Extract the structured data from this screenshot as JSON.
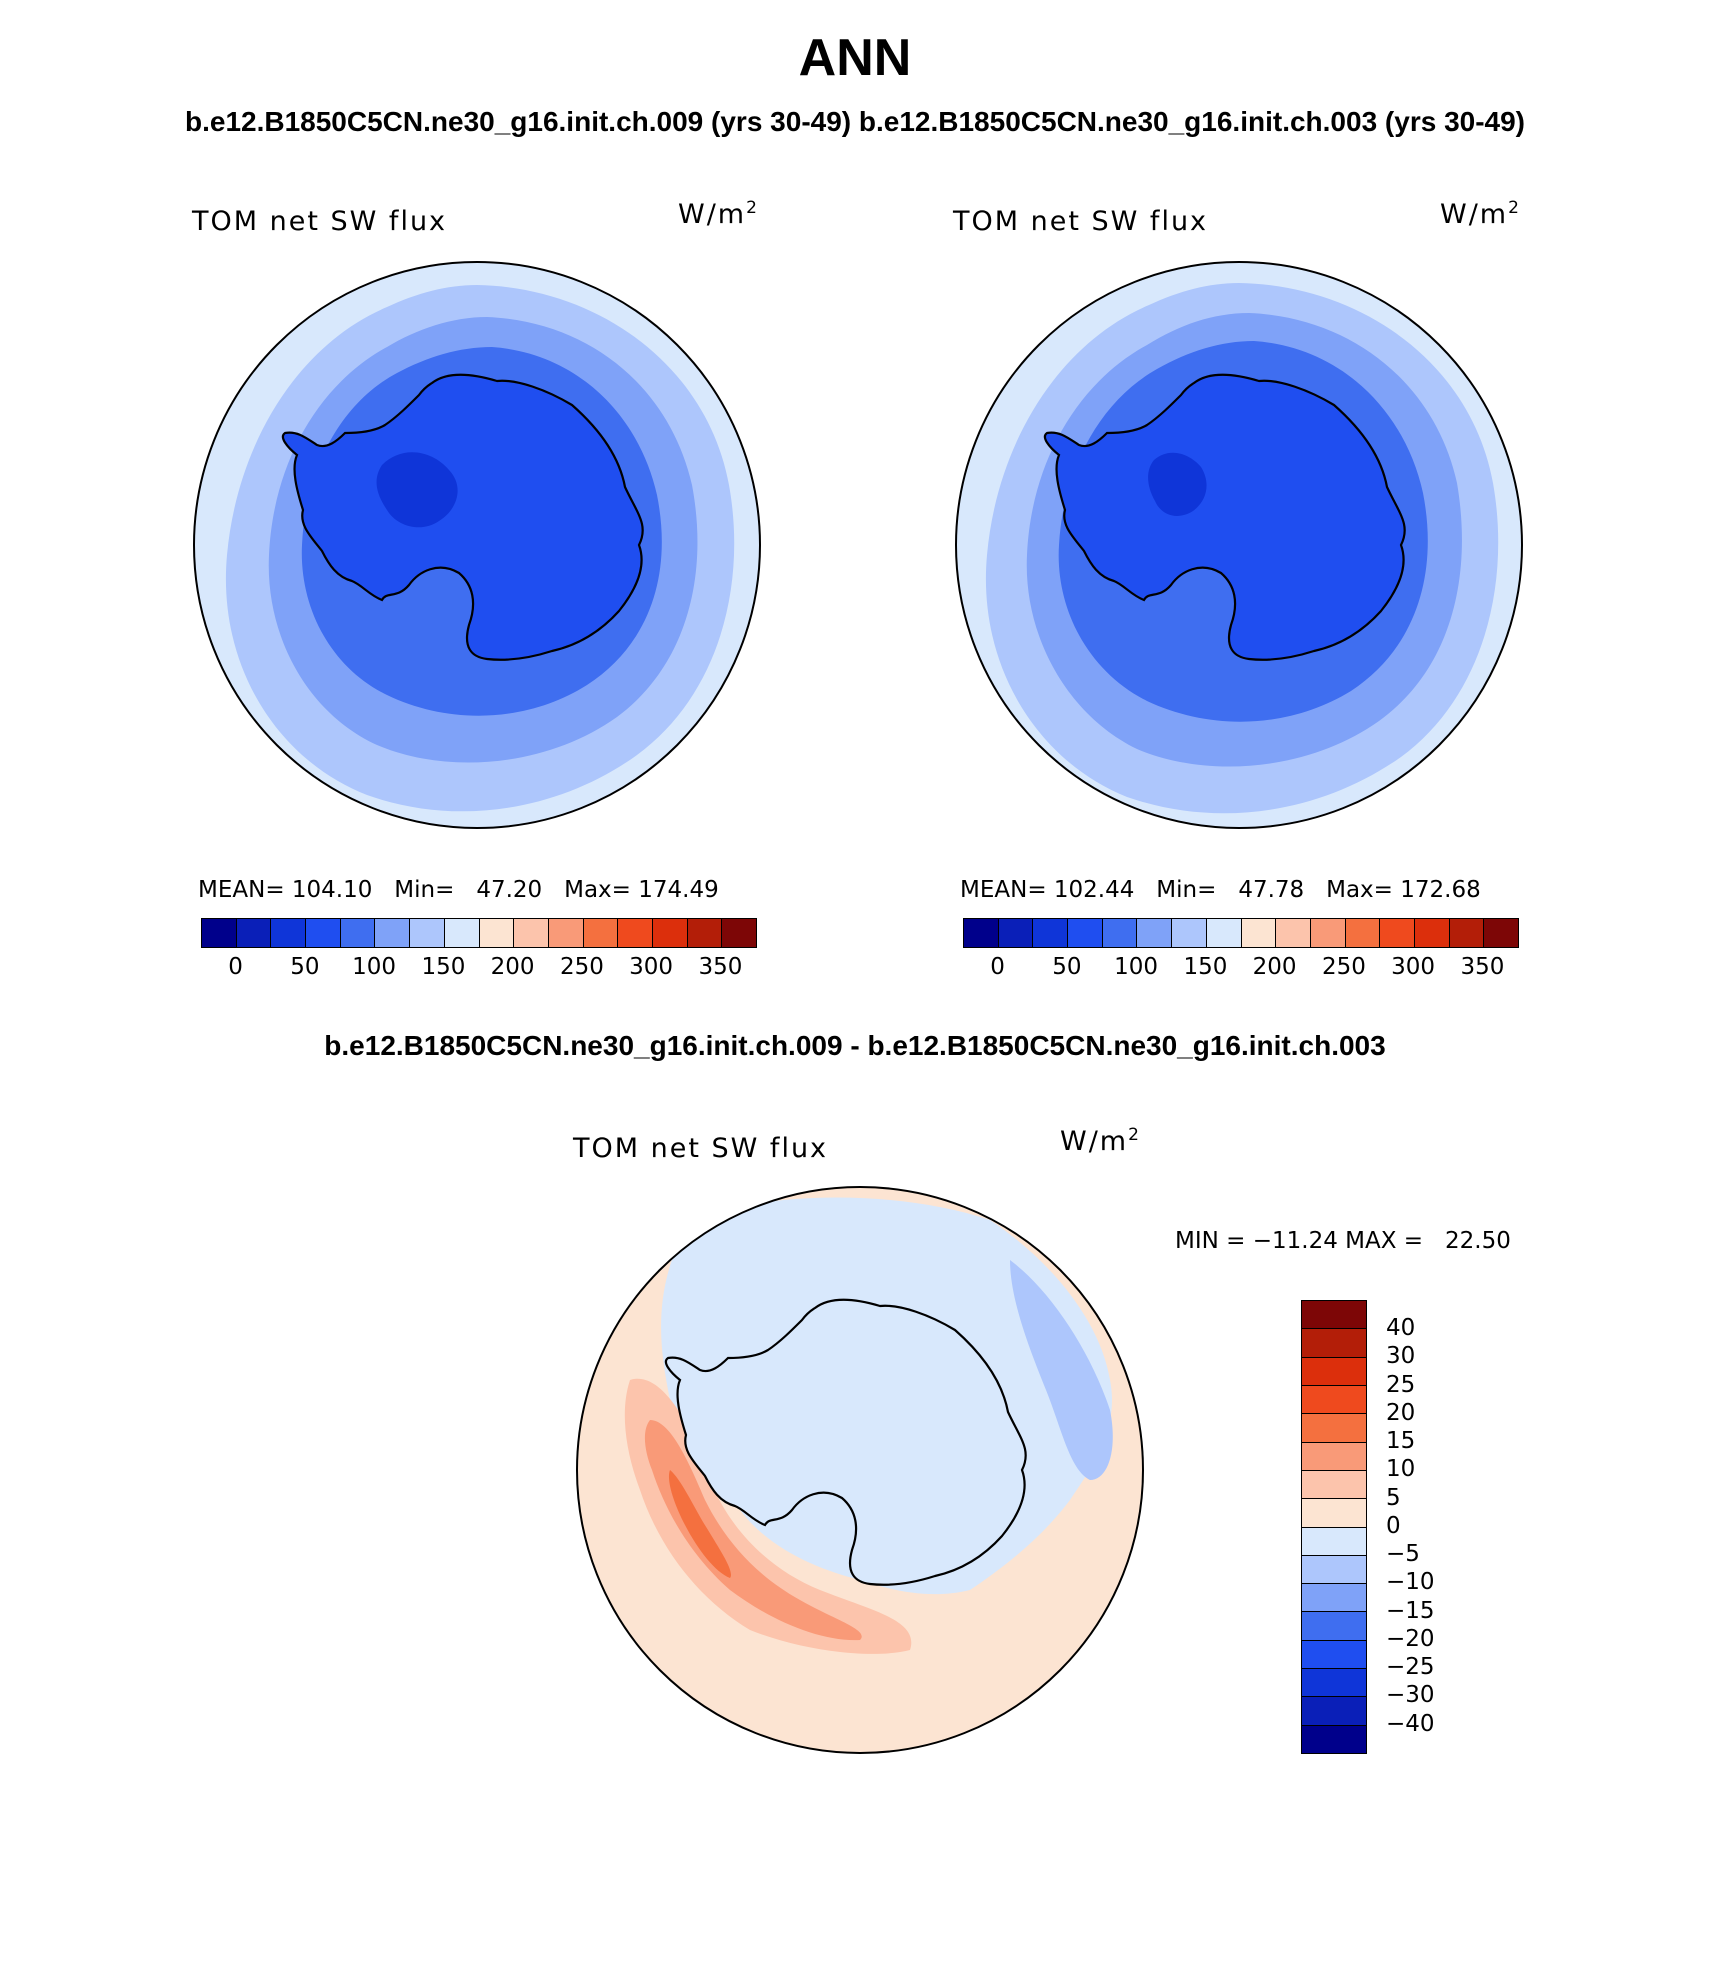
{
  "figure": {
    "title": "ANN",
    "run_titles": "b.e12.B1850C5CN.ne30_g16.init.ch.009 (yrs 30-49) b.e12.B1850C5CN.ne30_g16.init.ch.003 (yrs 30-49)",
    "diff_title": "b.e12.B1850C5CN.ne30_g16.init.ch.009 - b.e12.B1850C5CN.ne30_g16.init.ch.003"
  },
  "panels": [
    {
      "variable": "TOM net SW flux",
      "units": "W/m",
      "units_exp": "2",
      "stats": "MEAN= 104.10   Min=   47.20   Max= 174.49"
    },
    {
      "variable": "TOM net SW flux",
      "units": "W/m",
      "units_exp": "2",
      "stats": "MEAN= 102.44   Min=   47.78   Max= 172.68"
    }
  ],
  "difference_panel": {
    "variable": "TOM net SW flux",
    "units": "W/m",
    "units_exp": "2",
    "stats": "MIN = −11.24 MAX =   22.50"
  },
  "colors": {
    "abs_colors": [
      "#00008b",
      "#0a1fb8",
      "#0f35d8",
      "#1f4ef0",
      "#3f6ef0",
      "#7fa2f8",
      "#adc6fc",
      "#d8e8fc",
      "#fce4d2",
      "#fcc4ac",
      "#f99a78",
      "#f4703f",
      "#ef4a1e",
      "#dc2f0c",
      "#b31e08",
      "#7d0606"
    ],
    "diff_colors": [
      "#7d0606",
      "#b31e08",
      "#dc2f0c",
      "#ef4a1e",
      "#f4703f",
      "#f99a78",
      "#fcc4ac",
      "#fce4d2",
      "#d8e8fc",
      "#adc6fc",
      "#7fa2f8",
      "#3f6ef0",
      "#1f4ef0",
      "#0f35d8",
      "#0a1fb8",
      "#00008b"
    ]
  },
  "chart_data": [
    {
      "type": "polar-stereographic-contour-map",
      "title": "TOM net SW flux",
      "units": "W/m^2",
      "region": "South Polar (Antarctica)",
      "run": "b.e12.B1850C5CN.ne30_g16.init.ch.009 (yrs 30-49)",
      "mean": 104.1,
      "min": 47.2,
      "max": 174.49,
      "contour_levels": [
        0,
        25,
        50,
        75,
        100,
        125,
        150,
        175,
        200,
        225,
        250,
        275,
        300,
        325,
        350
      ],
      "colorbar_tick_labels": [
        "0",
        "50",
        "100",
        "150",
        "200",
        "250",
        "300",
        "350"
      ],
      "bands_center_to_edge": [
        75,
        100,
        125,
        150,
        175
      ]
    },
    {
      "type": "polar-stereographic-contour-map",
      "title": "TOM net SW flux",
      "units": "W/m^2",
      "region": "South Polar (Antarctica)",
      "run": "b.e12.B1850C5CN.ne30_g16.init.ch.003 (yrs 30-49)",
      "mean": 102.44,
      "min": 47.78,
      "max": 172.68,
      "contour_levels": [
        0,
        25,
        50,
        75,
        100,
        125,
        150,
        175,
        200,
        225,
        250,
        275,
        300,
        325,
        350
      ],
      "colorbar_tick_labels": [
        "0",
        "50",
        "100",
        "150",
        "200",
        "250",
        "300",
        "350"
      ],
      "bands_center_to_edge": [
        75,
        100,
        125,
        150,
        175
      ]
    },
    {
      "type": "polar-stereographic-contour-map-difference",
      "title": "TOM net SW flux",
      "units": "W/m^2",
      "region": "South Polar (Antarctica)",
      "min": -11.24,
      "max": 22.5,
      "contour_levels": [
        40,
        30,
        25,
        20,
        15,
        10,
        5,
        0,
        -5,
        -10,
        -15,
        -20,
        -25,
        -30,
        -40
      ],
      "colorbar_tick_labels": [
        "40",
        "30",
        "25",
        "20",
        "15",
        "10",
        "5",
        "0",
        "−5",
        "−10",
        "−15",
        "−20",
        "−25",
        "−30",
        "−40"
      ]
    }
  ]
}
